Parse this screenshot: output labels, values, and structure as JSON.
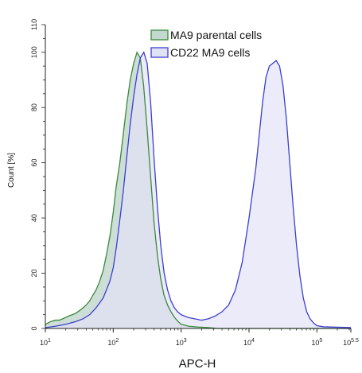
{
  "chart_data": {
    "type": "area",
    "x_scale": "log",
    "xlabel": "APC-H",
    "ylabel": "Count [%]",
    "xlim": [
      10,
      316228
    ],
    "ylim": [
      0,
      110
    ],
    "x_ticks": [
      {
        "value": 10,
        "base": "10",
        "exp": "1"
      },
      {
        "value": 100,
        "base": "10",
        "exp": "2"
      },
      {
        "value": 1000,
        "base": "10",
        "exp": "3"
      },
      {
        "value": 10000,
        "base": "10",
        "exp": "4"
      },
      {
        "value": 100000,
        "base": "10",
        "exp": "5"
      },
      {
        "value": 316228,
        "base": "10",
        "exp": "5.5"
      }
    ],
    "y_ticks": [
      {
        "value": 0,
        "label": "0"
      },
      {
        "value": 20,
        "label": "20"
      },
      {
        "value": 40,
        "label": "40"
      },
      {
        "value": 60,
        "label": "60"
      },
      {
        "value": 80,
        "label": "80"
      },
      {
        "value": 100,
        "label": "100"
      },
      {
        "value": 110,
        "label": "110"
      }
    ],
    "grid": false,
    "legend_position": "top-center",
    "series": [
      {
        "name": "MA9 parental cells",
        "stroke": "#3a8a3a",
        "fill": "#c4d8d0",
        "points": [
          [
            10,
            1.5
          ],
          [
            12,
            2.5
          ],
          [
            14,
            3
          ],
          [
            16,
            3
          ],
          [
            18,
            3.5
          ],
          [
            20,
            4
          ],
          [
            22,
            4.5
          ],
          [
            25,
            5
          ],
          [
            28,
            5.5
          ],
          [
            32,
            6.5
          ],
          [
            36,
            7.5
          ],
          [
            40,
            8.5
          ],
          [
            45,
            10
          ],
          [
            50,
            12
          ],
          [
            56,
            14
          ],
          [
            63,
            17
          ],
          [
            71,
            21
          ],
          [
            80,
            27
          ],
          [
            90,
            34
          ],
          [
            100,
            42
          ],
          [
            110,
            51
          ],
          [
            125,
            60
          ],
          [
            140,
            70
          ],
          [
            160,
            82
          ],
          [
            178,
            90
          ],
          [
            200,
            96
          ],
          [
            224,
            100
          ],
          [
            250,
            98
          ],
          [
            280,
            88
          ],
          [
            316,
            72
          ],
          [
            355,
            55
          ],
          [
            400,
            38
          ],
          [
            450,
            26
          ],
          [
            500,
            18
          ],
          [
            560,
            12
          ],
          [
            630,
            8.5
          ],
          [
            710,
            6
          ],
          [
            800,
            4
          ],
          [
            900,
            2.5
          ],
          [
            1000,
            1.5
          ],
          [
            1300,
            0.8
          ],
          [
            1800,
            0.5
          ],
          [
            2500,
            0.3
          ],
          [
            3500,
            0
          ],
          [
            316228,
            0
          ]
        ]
      },
      {
        "name": "CD22 MA9 cells",
        "stroke": "#3b3fd0",
        "fill": "#e2e2f6",
        "points": [
          [
            10,
            0.3
          ],
          [
            14,
            0.8
          ],
          [
            20,
            1.5
          ],
          [
            28,
            2.5
          ],
          [
            36,
            3.5
          ],
          [
            45,
            5
          ],
          [
            56,
            7.5
          ],
          [
            71,
            11
          ],
          [
            89,
            17
          ],
          [
            100,
            22
          ],
          [
            112,
            30
          ],
          [
            126,
            40
          ],
          [
            141,
            50
          ],
          [
            158,
            62
          ],
          [
            178,
            74
          ],
          [
            200,
            84
          ],
          [
            224,
            92
          ],
          [
            251,
            98
          ],
          [
            282,
            100
          ],
          [
            316,
            96
          ],
          [
            355,
            82
          ],
          [
            398,
            62
          ],
          [
            447,
            44
          ],
          [
            501,
            30
          ],
          [
            562,
            20
          ],
          [
            631,
            14
          ],
          [
            708,
            10
          ],
          [
            794,
            7.5
          ],
          [
            891,
            6
          ],
          [
            1000,
            5
          ],
          [
            1259,
            4
          ],
          [
            1585,
            3.5
          ],
          [
            2000,
            3
          ],
          [
            2512,
            3.5
          ],
          [
            3162,
            4.5
          ],
          [
            3981,
            6
          ],
          [
            5012,
            8.5
          ],
          [
            6310,
            14
          ],
          [
            7943,
            24
          ],
          [
            10000,
            40
          ],
          [
            12589,
            58
          ],
          [
            14125,
            70
          ],
          [
            15849,
            82
          ],
          [
            17783,
            91
          ],
          [
            19953,
            95
          ],
          [
            22387,
            96
          ],
          [
            25119,
            97
          ],
          [
            28184,
            95
          ],
          [
            31623,
            88
          ],
          [
            35481,
            76
          ],
          [
            39811,
            60
          ],
          [
            44668,
            44
          ],
          [
            50119,
            30
          ],
          [
            56234,
            19
          ],
          [
            63096,
            11
          ],
          [
            70795,
            6
          ],
          [
            79433,
            3.5
          ],
          [
            89125,
            2
          ],
          [
            100000,
            1
          ],
          [
            125893,
            0.6
          ],
          [
            316228,
            0.3
          ]
        ]
      }
    ]
  }
}
